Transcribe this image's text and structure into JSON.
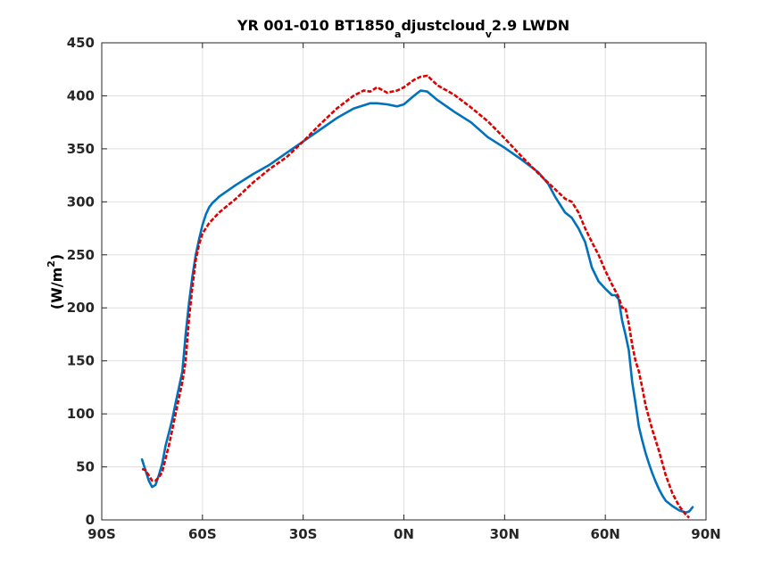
{
  "chart_data": {
    "type": "line",
    "title_parts": {
      "t1": "YR 001-010 BT1850",
      "t2": "a",
      "t3": "djustcloud",
      "t4": "v",
      "t5": "2.9 LWDN"
    },
    "xlabel": "",
    "ylabel_parts": {
      "y1": "(W/m",
      "y2": "2",
      "y3": ")"
    },
    "xlim": [
      -90,
      90
    ],
    "ylim": [
      0,
      450
    ],
    "xticks": [
      -90,
      -60,
      -30,
      0,
      30,
      60,
      90
    ],
    "xtick_labels": [
      "90S",
      "60S",
      "30S",
      "0N",
      "30N",
      "60N",
      "90N"
    ],
    "yticks": [
      0,
      50,
      100,
      150,
      200,
      250,
      300,
      350,
      400,
      450
    ],
    "ytick_labels": [
      "0",
      "50",
      "100",
      "150",
      "200",
      "250",
      "300",
      "350",
      "400",
      "450"
    ],
    "grid": true,
    "series": [
      {
        "color": "#0072BD",
        "style": "solid",
        "x": [
          -78,
          -77,
          -76,
          -75,
          -74,
          -73,
          -72,
          -71,
          -70,
          -69,
          -68,
          -67,
          -66,
          -65,
          -64,
          -63,
          -62,
          -61,
          -60,
          -59,
          -58,
          -57,
          -56,
          -55,
          -50,
          -45,
          -40,
          -35,
          -30,
          -25,
          -20,
          -15,
          -10,
          -8,
          -5,
          -2,
          0,
          3,
          5,
          7,
          10,
          15,
          20,
          25,
          30,
          35,
          40,
          43,
          45,
          48,
          50,
          52,
          54,
          56,
          58,
          60,
          62,
          63,
          64,
          65,
          66,
          67,
          68,
          69,
          70,
          71,
          72,
          73,
          74,
          75,
          76,
          77,
          78,
          80,
          82,
          84,
          85,
          86
        ],
        "y": [
          57,
          47,
          37,
          31,
          33,
          42,
          53,
          70,
          82,
          95,
          110,
          125,
          140,
          175,
          205,
          230,
          250,
          265,
          278,
          288,
          295,
          299,
          302,
          305,
          316,
          326,
          335,
          346,
          357,
          368,
          379,
          388,
          393,
          393,
          392,
          390,
          392,
          400,
          405,
          404,
          396,
          385,
          375,
          361,
          351,
          340,
          328,
          317,
          305,
          290,
          285,
          275,
          262,
          238,
          225,
          218,
          212,
          212,
          208,
          188,
          175,
          160,
          130,
          110,
          88,
          75,
          63,
          53,
          44,
          36,
          29,
          23,
          18,
          13,
          9,
          7,
          8,
          12
        ]
      },
      {
        "color": "#DD0000",
        "style": "dashed",
        "x": [
          -78,
          -77,
          -76,
          -75,
          -74,
          -73,
          -72,
          -71,
          -70,
          -69,
          -68,
          -67,
          -66,
          -65,
          -64,
          -63,
          -62,
          -61,
          -60,
          -58,
          -55,
          -50,
          -45,
          -40,
          -35,
          -30,
          -25,
          -20,
          -15,
          -12,
          -10,
          -8,
          -5,
          -2,
          0,
          3,
          5,
          7,
          10,
          15,
          20,
          25,
          30,
          35,
          40,
          45,
          48,
          50,
          52,
          54,
          56,
          58,
          60,
          62,
          64,
          65,
          66,
          67,
          68,
          69,
          70,
          71,
          72,
          74,
          76,
          78,
          80,
          82,
          84,
          85
        ],
        "y": [
          48,
          47,
          42,
          37,
          37,
          40,
          45,
          58,
          70,
          85,
          100,
          115,
          130,
          150,
          190,
          220,
          245,
          260,
          270,
          280,
          290,
          303,
          318,
          331,
          342,
          357,
          373,
          388,
          400,
          405,
          404,
          408,
          403,
          405,
          408,
          415,
          418,
          419,
          410,
          401,
          389,
          376,
          360,
          343,
          327,
          312,
          303,
          300,
          290,
          275,
          262,
          250,
          235,
          222,
          210,
          200,
          200,
          185,
          165,
          150,
          140,
          125,
          108,
          85,
          65,
          42,
          25,
          13,
          5,
          2
        ]
      }
    ]
  }
}
